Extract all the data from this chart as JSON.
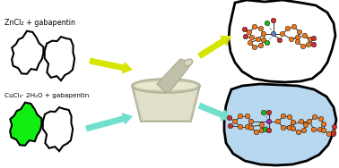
{
  "background_color": "#ffffff",
  "top_label": "ZnCl₂ + gabapentin",
  "bottom_label": "CuCl₂· 2H₂O + gabapentin",
  "arrow_yellow": "#d4e600",
  "arrow_cyan": "#70e0cc",
  "mortar_body_color": "#d0d0b8",
  "mortar_rim_color": "#c8c8a8",
  "mortar_shadow": "#b0b098",
  "pestle_color": "#c0c0a8",
  "crystal_top_bg": "#ffffff",
  "crystal_bottom_bg": "#b8d8f0",
  "node_orange": "#e87820",
  "node_red": "#c83030",
  "node_green": "#20b820",
  "node_blue": "#6080c0",
  "node_magenta": "#a030a0",
  "bond_dark": "#303030",
  "bond_dashed": "#6090c0"
}
